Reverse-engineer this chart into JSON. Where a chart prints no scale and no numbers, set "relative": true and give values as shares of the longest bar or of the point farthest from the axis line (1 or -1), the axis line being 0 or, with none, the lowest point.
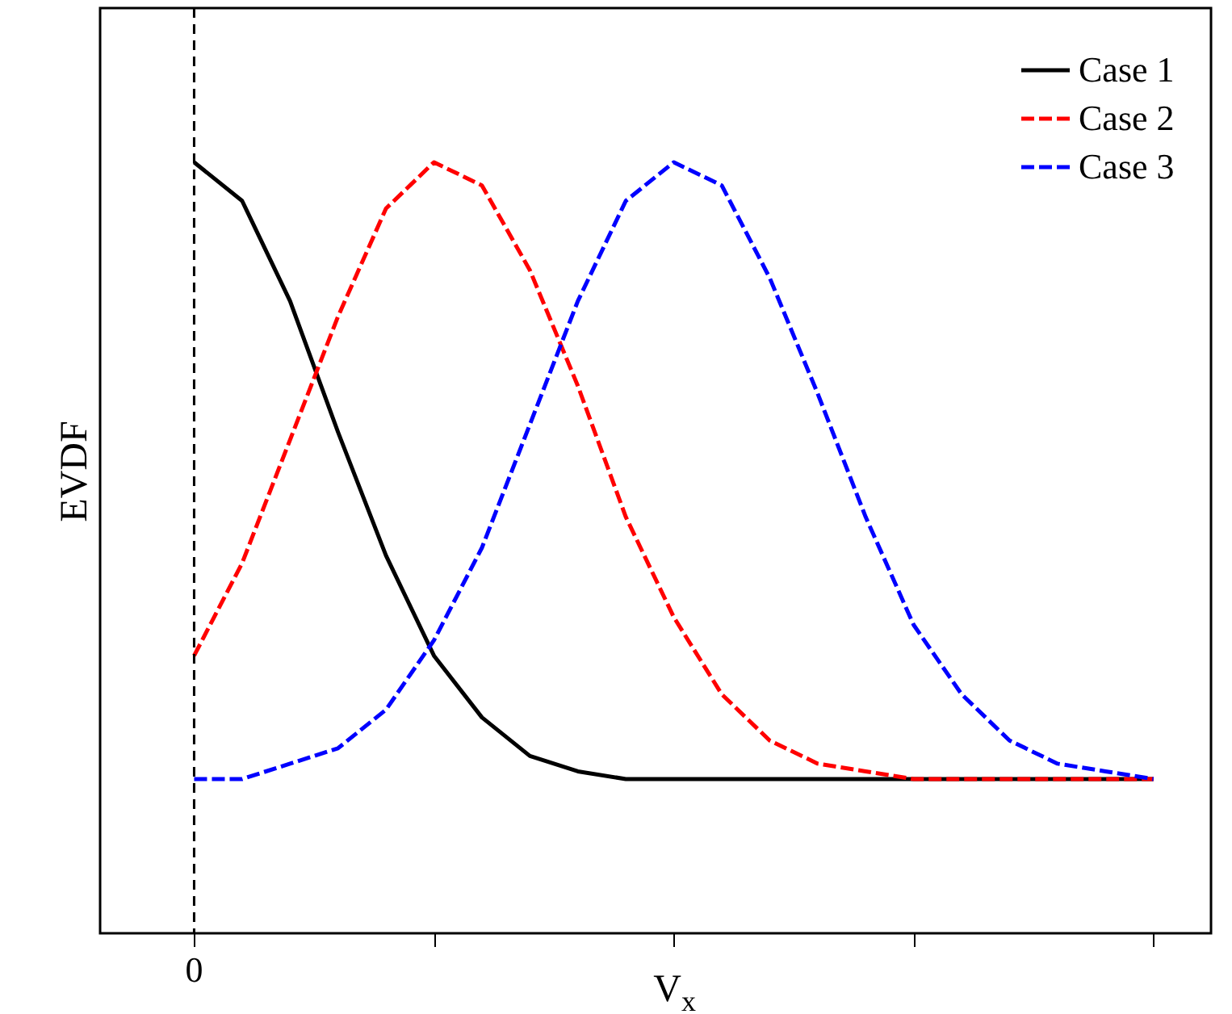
{
  "chart_data": {
    "type": "line",
    "xlabel": "V$_{x}$",
    "ylabel": "EVDF",
    "relative": true,
    "legend": "top right",
    "categories": [
      null,
      null,
      null,
      null,
      null,
      null,
      null,
      null,
      null,
      null,
      null,
      null,
      null,
      null,
      null,
      null,
      null,
      null,
      null,
      null,
      null
    ],
    "annotations": [
      "0"
    ],
    "series": [
      {
        "name": "Case 1",
        "color": "#000000",
        "line_style": "solid",
        "values": [
          1.0,
          0.95,
          0.82,
          0.65,
          0.49,
          0.36,
          0.28,
          0.23,
          0.21,
          0.2,
          0.2,
          0.2,
          0.2,
          0.2,
          0.2,
          0.2,
          0.2,
          0.2,
          0.2,
          0.2,
          0.2
        ]
      },
      {
        "name": "Case 2",
        "color": "#ff0000",
        "line_style": "dashed",
        "values": [
          0.36,
          0.48,
          0.64,
          0.8,
          0.94,
          1.0,
          0.97,
          0.86,
          0.71,
          0.54,
          0.41,
          0.31,
          0.25,
          0.22,
          0.21,
          0.2,
          0.2,
          0.2,
          0.2,
          0.2,
          0.2
        ]
      },
      {
        "name": "Case 3",
        "color": "#0000ff",
        "line_style": "dashed",
        "values": [
          0.2,
          0.2,
          0.22,
          0.24,
          0.29,
          0.38,
          0.5,
          0.66,
          0.82,
          0.95,
          1.0,
          0.97,
          0.85,
          0.7,
          0.54,
          0.4,
          0.31,
          0.25,
          0.22,
          0.21,
          0.2
        ]
      }
    ]
  }
}
